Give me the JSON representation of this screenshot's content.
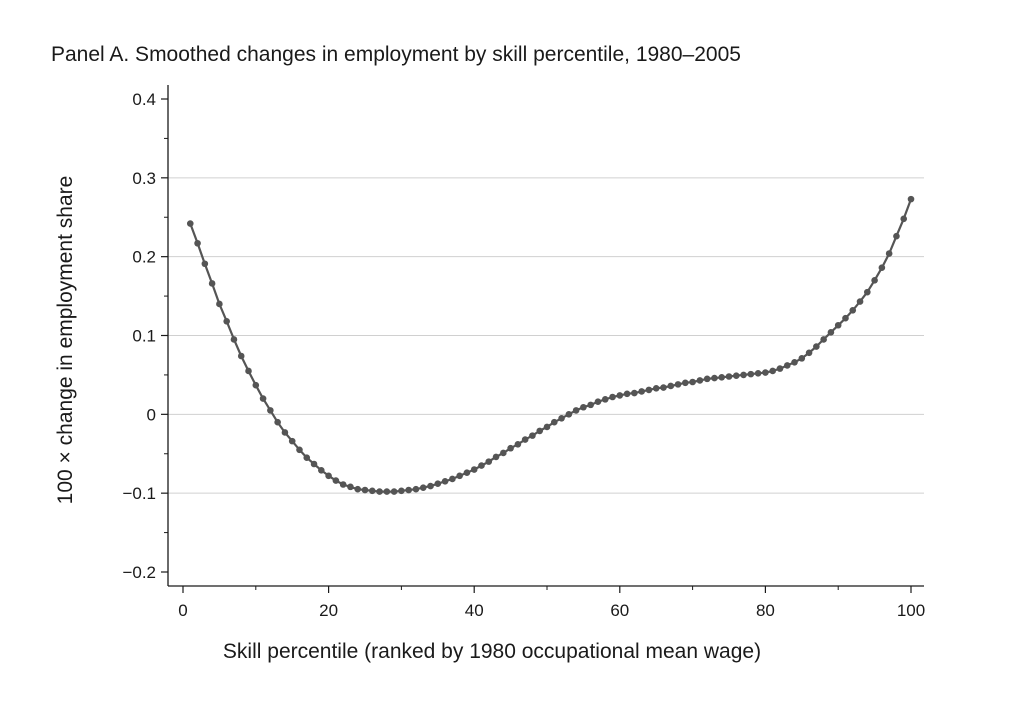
{
  "chart_data": {
    "type": "line",
    "title": "Panel A. Smoothed changes in employment by skill percentile, 1980–2005",
    "xlabel": "Skill percentile (ranked by 1980 occupational mean wage)",
    "ylabel": "100 × change in employment share",
    "xlim": [
      0,
      100
    ],
    "ylim": [
      -0.2,
      0.4
    ],
    "xticks": [
      0,
      20,
      40,
      60,
      80,
      100
    ],
    "xtick_labels": [
      "0",
      "20",
      "40",
      "60",
      "80",
      "100"
    ],
    "yticks": [
      -0.2,
      -0.1,
      0,
      0.1,
      0.2,
      0.3,
      0.4
    ],
    "ytick_labels": [
      "−0.2",
      "−0.1",
      "0",
      "0.1",
      "0.2",
      "0.3",
      "0.4"
    ],
    "gridlines": "horizontal",
    "colors": {
      "line": "#555555",
      "marker": "#555555",
      "grid": "#d0d0d0",
      "axis": "#1a1a1a"
    },
    "series": [
      {
        "x": [
          1,
          2,
          3,
          4,
          5,
          6,
          7,
          8,
          9,
          10,
          11,
          12,
          13,
          14,
          15,
          16,
          17,
          18,
          19,
          20,
          21,
          22,
          23,
          24,
          25,
          26,
          27,
          28,
          29,
          30,
          31,
          32,
          33,
          34,
          35,
          36,
          37,
          38,
          39,
          40,
          41,
          42,
          43,
          44,
          45,
          46,
          47,
          48,
          49,
          50,
          51,
          52,
          53,
          54,
          55,
          56,
          57,
          58,
          59,
          60,
          61,
          62,
          63,
          64,
          65,
          66,
          67,
          68,
          69,
          70,
          71,
          72,
          73,
          74,
          75,
          76,
          77,
          78,
          79,
          80,
          81,
          82,
          83,
          84,
          85,
          86,
          87,
          88,
          89,
          90,
          91,
          92,
          93,
          94,
          95,
          96,
          97,
          98,
          99,
          100
        ],
        "y": [
          0.242,
          0.217,
          0.191,
          0.166,
          0.14,
          0.118,
          0.095,
          0.074,
          0.055,
          0.037,
          0.02,
          0.005,
          -0.01,
          -0.023,
          -0.034,
          -0.045,
          -0.055,
          -0.063,
          -0.071,
          -0.078,
          -0.084,
          -0.089,
          -0.092,
          -0.095,
          -0.096,
          -0.097,
          -0.098,
          -0.098,
          -0.098,
          -0.097,
          -0.096,
          -0.095,
          -0.093,
          -0.091,
          -0.088,
          -0.085,
          -0.082,
          -0.078,
          -0.074,
          -0.07,
          -0.065,
          -0.06,
          -0.054,
          -0.049,
          -0.043,
          -0.038,
          -0.032,
          -0.027,
          -0.021,
          -0.016,
          -0.01,
          -0.005,
          0,
          0.005,
          0.009,
          0.012,
          0.016,
          0.019,
          0.022,
          0.024,
          0.026,
          0.027,
          0.029,
          0.031,
          0.033,
          0.034,
          0.036,
          0.038,
          0.04,
          0.041,
          0.043,
          0.045,
          0.046,
          0.047,
          0.048,
          0.049,
          0.05,
          0.051,
          0.052,
          0.053,
          0.055,
          0.058,
          0.062,
          0.066,
          0.071,
          0.078,
          0.086,
          0.095,
          0.104,
          0.113,
          0.122,
          0.132,
          0.143,
          0.155,
          0.17,
          0.186,
          0.204,
          0.226,
          0.248,
          0.273
        ]
      }
    ]
  }
}
